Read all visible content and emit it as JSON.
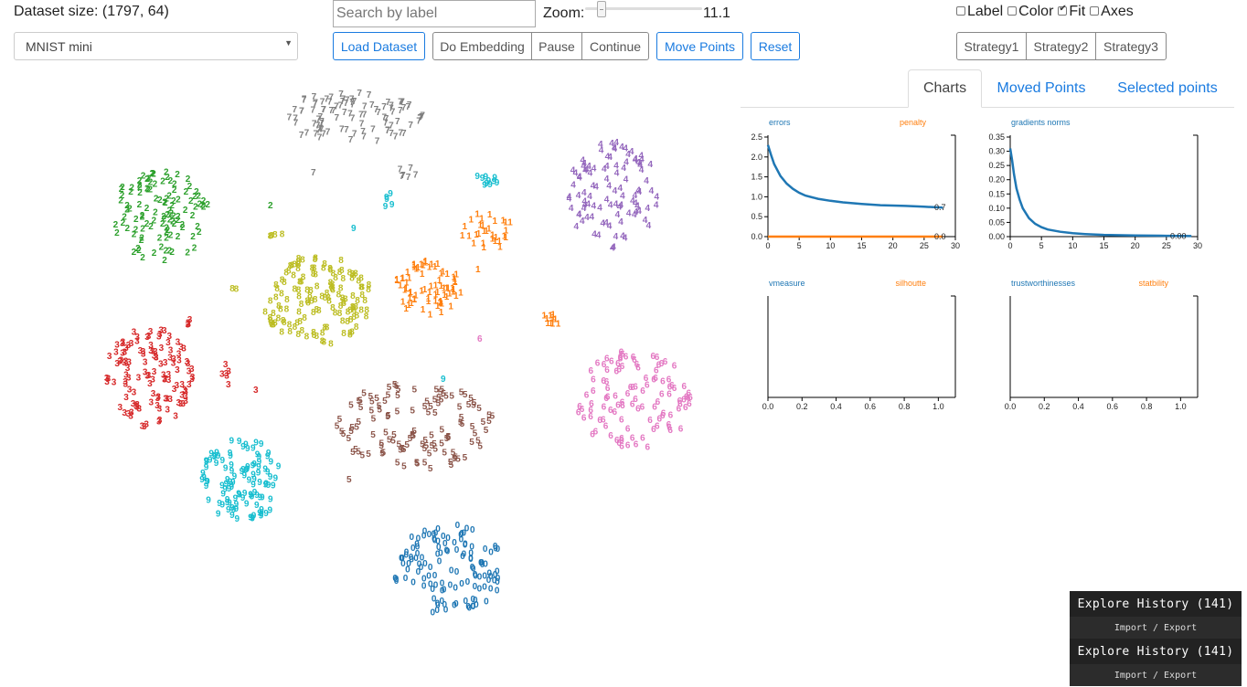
{
  "header": {
    "dataset_size": "Dataset size: (1797, 64)",
    "dataset_select": "MNIST mini",
    "search_placeholder": "Search by label",
    "zoom_label": "Zoom:",
    "zoom_value": "11.1",
    "zoom_level": 0.11
  },
  "buttons": {
    "load": "Load Dataset",
    "do_embedding": "Do Embedding",
    "pause": "Pause",
    "continue": "Continue",
    "move_points": "Move Points",
    "reset": "Reset",
    "strategy1": "Strategy1",
    "strategy2": "Strategy2",
    "strategy3": "Strategy3"
  },
  "toggles": [
    {
      "label": "Label",
      "checked": false
    },
    {
      "label": "Color",
      "checked": false
    },
    {
      "label": "Fit",
      "checked": true
    },
    {
      "label": "Axes",
      "checked": false
    }
  ],
  "tabs": [
    {
      "label": "Charts",
      "active": true
    },
    {
      "label": "Moved Points",
      "active": false
    },
    {
      "label": "Selected points",
      "active": false
    }
  ],
  "digit_colors": {
    "0": "#1f77b4",
    "1": "#ff7f0e",
    "2": "#2ca02c",
    "3": "#d62728",
    "4": "#9467bd",
    "5": "#8c564b",
    "6": "#e377c2",
    "7": "#7f7f7f",
    "8": "#bcbd22",
    "9": "#17becf"
  },
  "chart_data": [
    {
      "type": "line",
      "left_label": "errors",
      "right_label": "penalty",
      "x_ticks": [
        "0",
        "5",
        "10",
        "15",
        "20",
        "25",
        "30"
      ],
      "y_ticks": [
        "0.0",
        "0.5",
        "1.0",
        "1.5",
        "2.0",
        "2.5"
      ],
      "xlim": [
        0,
        30
      ],
      "ylim": [
        0,
        2.5
      ],
      "series": [
        {
          "name": "errors",
          "color": "#1f77b4",
          "x": [
            0,
            0.5,
            1,
            2,
            3,
            4,
            5,
            6,
            8,
            10,
            12,
            15,
            18,
            20,
            22,
            25,
            28
          ],
          "y": [
            2.3,
            2.05,
            1.82,
            1.52,
            1.33,
            1.2,
            1.1,
            1.03,
            0.95,
            0.9,
            0.86,
            0.82,
            0.79,
            0.78,
            0.77,
            0.75,
            0.73
          ]
        },
        {
          "name": "penalty",
          "color": "#ff7f0e",
          "x": [
            0,
            28
          ],
          "y": [
            0.0,
            0.0
          ]
        }
      ],
      "end_labels": [
        "0.7",
        "0.0"
      ]
    },
    {
      "type": "line",
      "left_label": "gradients norms",
      "right_label": "",
      "x_ticks": [
        "0",
        "5",
        "10",
        "15",
        "20",
        "25",
        "30"
      ],
      "y_ticks": [
        "0.00",
        "0.05",
        "0.10",
        "0.15",
        "0.20",
        "0.25",
        "0.30",
        "0.35"
      ],
      "xlim": [
        0,
        30
      ],
      "ylim": [
        0,
        0.35
      ],
      "series": [
        {
          "name": "gradients norms",
          "color": "#1f77b4",
          "x": [
            0,
            0.3,
            0.6,
            1,
            1.5,
            2,
            3,
            4,
            5,
            6,
            8,
            10,
            12,
            15,
            20,
            25,
            29
          ],
          "y": [
            0.31,
            0.27,
            0.22,
            0.17,
            0.13,
            0.1,
            0.065,
            0.045,
            0.033,
            0.025,
            0.017,
            0.012,
            0.009,
            0.006,
            0.004,
            0.003,
            0.002
          ]
        }
      ],
      "end_labels": [
        "0.00"
      ]
    },
    {
      "type": "line",
      "left_label": "vmeasure",
      "right_label": "silhoutte",
      "x_ticks": [
        "0.0",
        "0.2",
        "0.4",
        "0.6",
        "0.8",
        "1.0"
      ],
      "y_ticks": [],
      "xlim": [
        0,
        1.1
      ],
      "series": []
    },
    {
      "type": "line",
      "left_label": "trustworthinesses",
      "right_label": "statbility",
      "x_ticks": [
        "0.0",
        "0.2",
        "0.4",
        "0.6",
        "0.8",
        "1.0"
      ],
      "y_ticks": [],
      "xlim": [
        0,
        1.1
      ],
      "series": []
    }
  ],
  "history": [
    {
      "title": "Explore History (141)",
      "sub": "Import / Export"
    },
    {
      "title": "Explore History (141)",
      "sub": "Import / Export"
    }
  ]
}
